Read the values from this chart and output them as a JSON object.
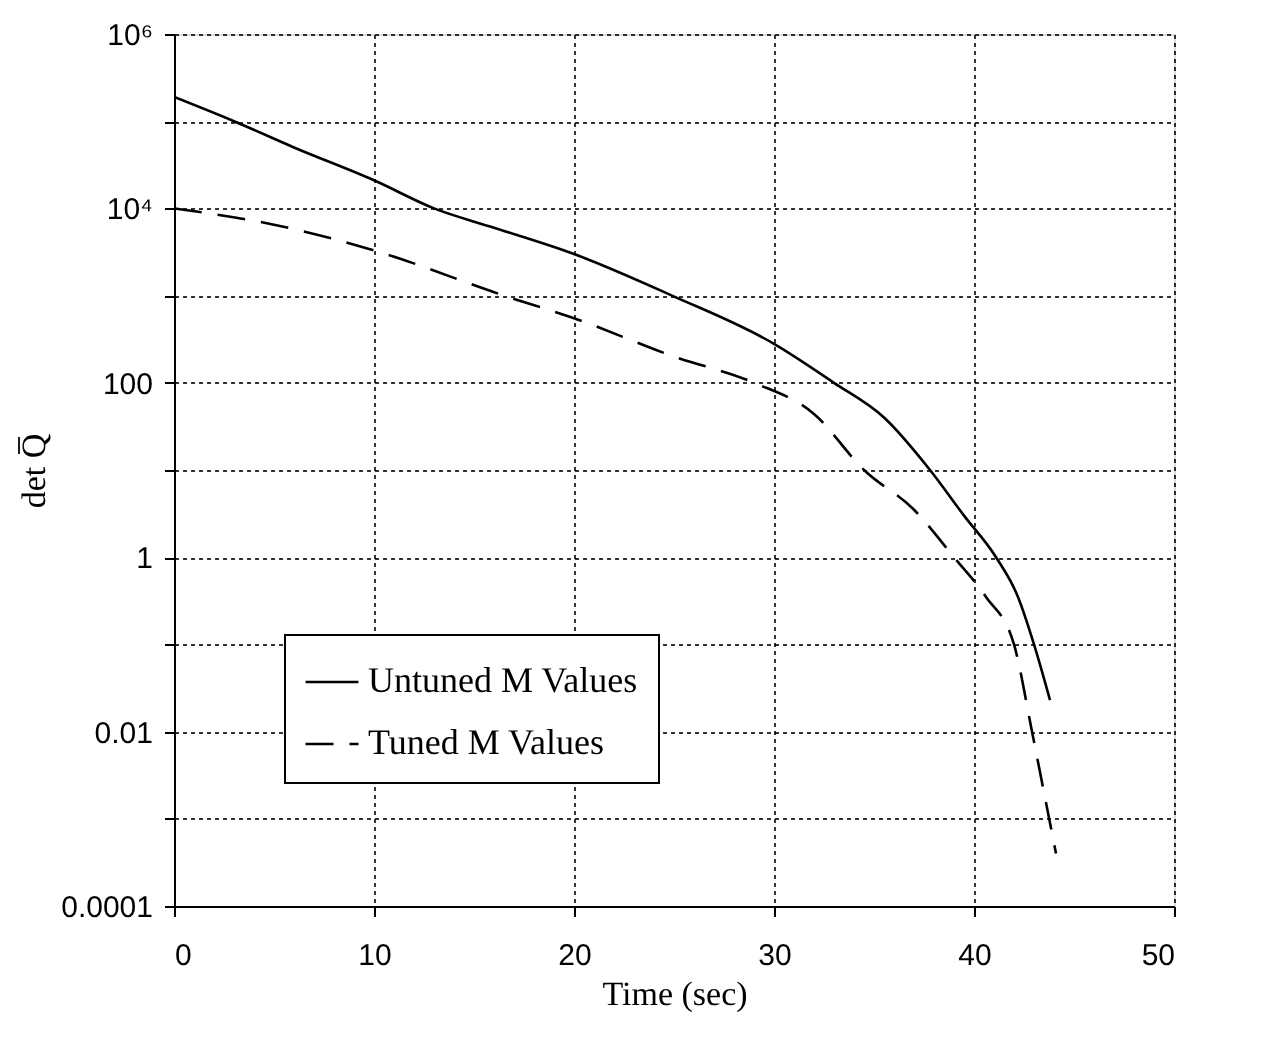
{
  "chart_data": {
    "type": "line",
    "xlabel": "Time (sec)",
    "ylabel": "det Q̅",
    "log": "y",
    "xlim": [
      0,
      50
    ],
    "xticks": [
      0,
      10,
      20,
      30,
      40,
      50
    ],
    "ylim": [
      0.0001,
      1000000
    ],
    "yticks": [
      {
        "value": 1000000,
        "label": "10⁶"
      },
      {
        "value": 100000,
        "label": null
      },
      {
        "value": 10000,
        "label": "10⁴"
      },
      {
        "value": 1000,
        "label": null
      },
      100,
      {
        "value": 10,
        "label": null
      },
      1,
      {
        "value": 0.1,
        "label": null
      },
      0.01,
      {
        "value": 0.001,
        "label": null
      },
      0.0001
    ],
    "grid": true,
    "legend": "bottom left",
    "series": [
      {
        "name": "Untuned M Values",
        "color": "#000000",
        "line_style": "solid",
        "x": [
          0,
          3,
          6,
          10,
          13,
          16,
          20,
          24.9,
          30,
          33,
          35.5,
          37.8,
          39.5,
          41.1,
          42.2,
          43,
          43.8
        ],
        "values": [
          190000,
          100000,
          50000,
          21000,
          10000,
          6000,
          3000,
          1000,
          280,
          100,
          40,
          10,
          3,
          1,
          0.35,
          0.1,
          0.023
        ]
      },
      {
        "name": "Tuned M Values",
        "color": "#000000",
        "line_style": "dashed",
        "x": [
          0,
          5,
          10,
          16.5,
          20,
          25,
          29,
          32,
          34.5,
          37,
          39,
          40.6,
          42,
          42.9,
          43.5,
          44.1
        ],
        "values": [
          10000,
          6500,
          3300,
          1000,
          550,
          200,
          100,
          44,
          10,
          3.5,
          1,
          0.35,
          0.1,
          0.01,
          0.002,
          0.0004
        ]
      }
    ]
  }
}
